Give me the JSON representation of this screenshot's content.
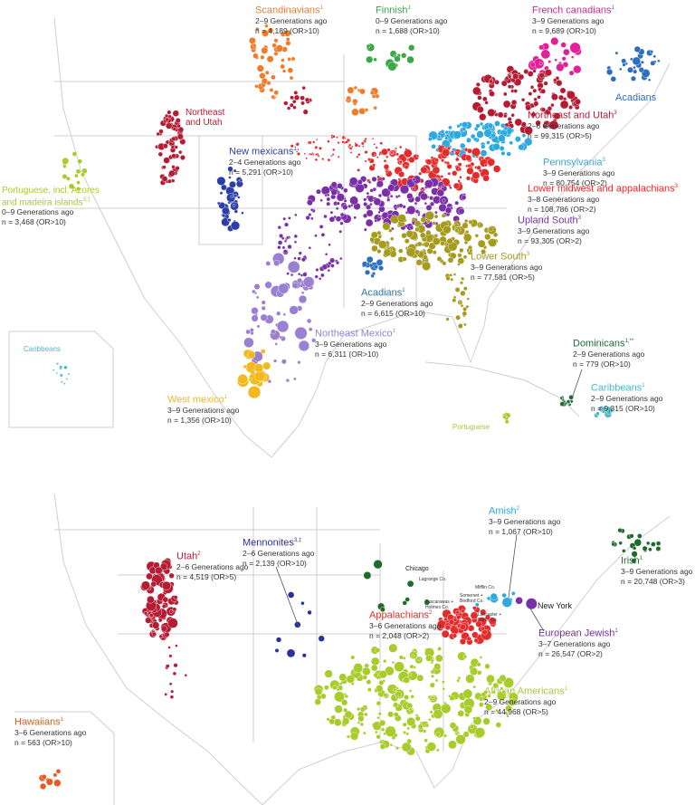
{
  "colors": {
    "scandinavians": "#f07c2a",
    "finnish": "#3aa845",
    "french_canadians": "#e2209a",
    "acadians": "#2c6fc0",
    "northeast_utah": "#b51c33",
    "pennsylvania": "#2ea9e0",
    "lower_midwest": "#e42b2b",
    "upland_south": "#7a2fa8",
    "lower_south": "#a59b1f",
    "new_mexicans": "#2c3fa8",
    "portuguese": "#a8cc2c",
    "northeast_mexico": "#9b7fd0",
    "west_mexico": "#f2b81c",
    "dominicans": "#1f6b3a",
    "caribbeans": "#4fb8c8",
    "hawaiians": "#e85a1f",
    "irish": "#1f6b2a",
    "amish": "#2ea9e0",
    "european_jewish": "#7a2fa8",
    "mennonites": "#2c2fa0",
    "appalachians": "#e42b2b",
    "african_americans": "#a8cc2c",
    "utah": "#b51c33",
    "map_lines": "#cccccc"
  },
  "top_panel": {
    "labels": [
      {
        "id": "scandinavians",
        "title": "Scandinavians",
        "sup": "1",
        "gen": "2–9 Generations ago",
        "n": "n = 4,189 (OR>10)"
      },
      {
        "id": "finnish",
        "title": "Finnish",
        "sup": "1",
        "gen": "0–9 Generations ago",
        "n": "n = 1,688 (OR>10)"
      },
      {
        "id": "french_canadians",
        "title": "French canadians",
        "sup": "1",
        "gen": "3–9 Generations ago",
        "n": "n = 9,689 (OR>10)"
      },
      {
        "id": "northeast_utah",
        "title": "Northeast and Utah",
        "sup": "3",
        "gen": "2–6 Generations ago",
        "n": "n = 99,315 (OR>5)"
      },
      {
        "id": "pennsylvania",
        "title": "Pennsylvania",
        "sup": "3",
        "gen": "3–9 Generations ago",
        "n": "n = 80,754 (OR>2)"
      },
      {
        "id": "lower_midwest",
        "title": "Lower midwest and appalachians",
        "sup": "3",
        "gen": "3–8 Generations ago",
        "n": "n = 108,786 (OR>2)"
      },
      {
        "id": "upland_south",
        "title": "Upland South",
        "sup": "3",
        "gen": "3–9 Generations ago",
        "n": "n = 93,305 (OR>2)"
      },
      {
        "id": "lower_south",
        "title": "Lower South",
        "sup": "3",
        "gen": "3–9 Generations ago",
        "n": "n = 77,581 (OR>5)"
      },
      {
        "id": "acadians",
        "title": "Acadians",
        "sup": "1",
        "gen": "2–9 Generations ago",
        "n": "n = 6,615 (OR>10)"
      },
      {
        "id": "northeast_mexico",
        "title": "Northeast Mexico",
        "sup": "1",
        "gen": "3–9 Generations ago",
        "n": "n = 6,311 (OR>10)"
      },
      {
        "id": "dominicans",
        "title": "Dominicans",
        "sup": "1,**",
        "gen": "2–9 Generations ago",
        "n": "n = 779 (OR>10)"
      },
      {
        "id": "caribbeans",
        "title": "Caribbeans",
        "sup": "1",
        "gen": "2–9 Generations ago",
        "n": "n = 9,315 (OR>10)"
      },
      {
        "id": "west_mexico",
        "title": "West mexico",
        "sup": "1",
        "gen": "3–9 Generations ago",
        "n": "n = 1,356 (OR>10)"
      },
      {
        "id": "new_mexicans",
        "title": "New mexicans",
        "sup": "1",
        "gen": "2–4 Generations ago",
        "n": "n = 5,291 (OR>10)"
      },
      {
        "id": "portuguese",
        "title": "Portuguese, incl. Azores and madeira islands",
        "sup": "3,‡",
        "gen": "0–9 Generations ago",
        "n": "n = 3,468 (OR>10)"
      }
    ],
    "map_text": {
      "acadians_ne": "Acadians",
      "northeast_utah_west": "Northeast and Utah",
      "caribbeans_inset": "Caribbeans",
      "portuguese_caribbean": "Portuguese"
    }
  },
  "bottom_panel": {
    "labels": [
      {
        "id": "utah",
        "title": "Utah",
        "sup": "2",
        "gen": "2–6 Generations ago",
        "n": "n = 4,519 (OR>5)"
      },
      {
        "id": "mennonites",
        "title": "Mennonites",
        "sup": "3,‡",
        "gen": "2–6 Generations ago",
        "n": "n = 2,139 (OR>10)"
      },
      {
        "id": "amish",
        "title": "Amish",
        "sup": "2",
        "gen": "3–9 Generations ago",
        "n": "n = 1,067 (OR>10)"
      },
      {
        "id": "irish",
        "title": "Irish",
        "sup": "1",
        "gen": "3–9 Generations ago",
        "n": "n = 20,748 (OR>3)"
      },
      {
        "id": "appalachians",
        "title": "Appalachians",
        "sup": "2",
        "gen": "3–6 Generations ago",
        "n": "n = 2,048 (OR>2)"
      },
      {
        "id": "european_jewish",
        "title": "European Jewish",
        "sup": "1",
        "gen": "3–7 Generations ago",
        "n": "n = 26,547 (OR>2)"
      },
      {
        "id": "african_americans",
        "title": "African Americans",
        "sup": "1",
        "gen": "2–9 Generations ago",
        "n": "n = 44,968 (OR>5)"
      },
      {
        "id": "hawaiians",
        "title": "Hawaiians",
        "sup": "1",
        "gen": "3–6 Generations ago",
        "n": "n = 563 (OR>10)"
      }
    ],
    "places": {
      "chicago": "Chicago",
      "lagrange": "Lagrange Co.",
      "mifflin": "Mifflin Co.",
      "somerset": "Somerset + Bedford Co.",
      "tuscarawas": "Tuscarawas + Holmes Co.",
      "lancaster": "Lancaster + Berks Co.",
      "new_york": "New York"
    }
  }
}
